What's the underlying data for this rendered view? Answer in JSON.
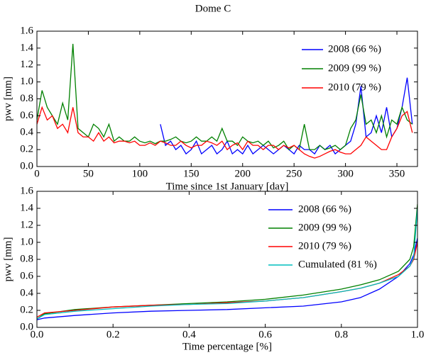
{
  "chart_data": [
    {
      "type": "line",
      "title": "Dome C",
      "xlabel": "Time since 1st January [day]",
      "ylabel": "pwv [mm]",
      "legend": "upper right",
      "x": [
        0,
        5,
        10,
        15,
        20,
        25,
        30,
        35,
        40,
        45,
        50,
        55,
        60,
        65,
        70,
        75,
        80,
        85,
        90,
        95,
        100,
        105,
        110,
        115,
        120,
        125,
        130,
        135,
        140,
        145,
        150,
        155,
        160,
        165,
        170,
        175,
        180,
        185,
        190,
        195,
        200,
        205,
        210,
        215,
        220,
        225,
        230,
        235,
        240,
        245,
        250,
        255,
        260,
        265,
        270,
        275,
        280,
        285,
        290,
        295,
        300,
        305,
        310,
        315,
        320,
        325,
        330,
        335,
        340,
        345,
        350,
        355,
        360,
        365
      ],
      "xlim": [
        0,
        370
      ],
      "xticks": [
        0,
        50,
        100,
        150,
        200,
        250,
        300,
        350
      ],
      "ylim": [
        0,
        1.6
      ],
      "yticks": [
        {
          "value": 0,
          "label": "0.0"
        },
        0.2,
        0.4,
        0.6,
        0.8,
        {
          "value": 1,
          "label": "1.0"
        },
        1.2,
        1.4,
        1.6
      ],
      "series": [
        {
          "name": "2008 (66 %)",
          "color": "#0000ff",
          "values": [
            null,
            null,
            null,
            null,
            null,
            null,
            null,
            null,
            null,
            null,
            null,
            null,
            null,
            null,
            null,
            null,
            null,
            null,
            null,
            null,
            null,
            null,
            null,
            null,
            0.5,
            0.25,
            0.3,
            0.2,
            0.25,
            0.15,
            0.2,
            0.3,
            0.15,
            0.2,
            0.25,
            0.15,
            0.2,
            0.3,
            0.15,
            0.2,
            0.15,
            0.25,
            0.15,
            0.2,
            0.25,
            0.2,
            0.15,
            0.2,
            0.25,
            0.2,
            0.15,
            0.25,
            0.2,
            0.2,
            0.15,
            0.25,
            0.2,
            0.25,
            0.15,
            0.2,
            0.25,
            0.3,
            0.5,
            0.95,
            0.35,
            0.4,
            0.6,
            0.4,
            0.7,
            0.35,
            0.45,
            0.7,
            1.05,
            0.5
          ]
        },
        {
          "name": "2009 (99 %)",
          "color": "#008000",
          "values": [
            0.55,
            0.9,
            0.7,
            0.6,
            0.5,
            0.75,
            0.55,
            1.45,
            0.45,
            0.4,
            0.35,
            0.5,
            0.45,
            0.35,
            0.5,
            0.3,
            0.35,
            0.3,
            0.3,
            0.35,
            0.3,
            0.28,
            0.3,
            0.27,
            0.3,
            0.3,
            0.32,
            0.35,
            0.3,
            0.28,
            0.3,
            0.35,
            0.3,
            0.3,
            0.35,
            0.3,
            0.45,
            0.3,
            0.3,
            0.25,
            0.35,
            0.3,
            0.28,
            0.3,
            0.25,
            0.3,
            0.22,
            0.25,
            0.3,
            0.2,
            0.25,
            0.2,
            0.5,
            0.2,
            0.2,
            0.25,
            0.2,
            0.22,
            0.25,
            0.2,
            0.25,
            0.45,
            0.55,
            0.85,
            0.5,
            0.55,
            0.4,
            0.6,
            0.35,
            0.55,
            0.5,
            0.7,
            0.55,
            0.5
          ]
        },
        {
          "name": "2010 (79 %)",
          "color": "#ff0000",
          "values": [
            0.5,
            0.7,
            0.55,
            0.6,
            0.45,
            0.5,
            0.4,
            0.7,
            0.4,
            0.35,
            0.35,
            0.3,
            0.4,
            0.3,
            0.35,
            0.28,
            0.3,
            0.3,
            0.28,
            0.3,
            0.25,
            0.25,
            0.28,
            0.25,
            0.3,
            0.28,
            0.25,
            0.25,
            0.3,
            0.25,
            0.22,
            0.25,
            0.25,
            0.3,
            0.28,
            0.25,
            0.3,
            0.2,
            0.25,
            0.28,
            0.2,
            0.3,
            0.25,
            0.25,
            0.2,
            0.25,
            0.25,
            0.2,
            0.25,
            0.22,
            0.25,
            0.2,
            0.15,
            0.12,
            0.1,
            0.12,
            0.15,
            0.18,
            0.2,
            0.17,
            0.15,
            0.15,
            0.2,
            0.25,
            0.35,
            0.3,
            0.25,
            0.2,
            0.2,
            0.35,
            0.45,
            0.6,
            0.65,
            0.4
          ]
        }
      ]
    },
    {
      "type": "line",
      "xlabel": "Time percentage [%]",
      "ylabel": "pwv [mm]",
      "legend": "upper right",
      "x": [
        0,
        0.02,
        0.1,
        0.2,
        0.3,
        0.4,
        0.5,
        0.6,
        0.7,
        0.8,
        0.85,
        0.9,
        0.95,
        0.98,
        0.99,
        1
      ],
      "xlim": [
        0,
        1
      ],
      "xticks": [
        {
          "value": 0,
          "label": "0.0"
        },
        0.2,
        0.4,
        0.6,
        0.8,
        {
          "value": 1,
          "label": "1.0"
        }
      ],
      "ylim": [
        0,
        1.6
      ],
      "yticks": [
        {
          "value": 0,
          "label": "0.0"
        },
        0.2,
        0.4,
        0.6,
        0.8,
        {
          "value": 1,
          "label": "1.0"
        },
        1.2,
        1.4,
        1.6
      ],
      "series": [
        {
          "name": "2008 (66 %)",
          "color": "#0000ff",
          "values": [
            0.09,
            0.11,
            0.14,
            0.17,
            0.19,
            0.2,
            0.21,
            0.23,
            0.25,
            0.3,
            0.35,
            0.45,
            0.6,
            0.75,
            0.85,
            1.05
          ]
        },
        {
          "name": "2009 (99 %)",
          "color": "#008000",
          "values": [
            0.1,
            0.16,
            0.21,
            0.24,
            0.26,
            0.28,
            0.3,
            0.33,
            0.38,
            0.45,
            0.5,
            0.56,
            0.66,
            0.8,
            0.95,
            1.45
          ]
        },
        {
          "name": "2010 (79 %)",
          "color": "#ff0000",
          "values": [
            0.12,
            0.17,
            0.2,
            0.24,
            0.26,
            0.27,
            0.29,
            0.31,
            0.35,
            0.42,
            0.46,
            0.52,
            0.62,
            0.72,
            0.8,
            1.0
          ]
        },
        {
          "name": "Cumulated (81 %)",
          "color": "#00bfbf",
          "values": [
            0.1,
            0.15,
            0.19,
            0.22,
            0.25,
            0.27,
            0.28,
            0.31,
            0.35,
            0.42,
            0.46,
            0.52,
            0.6,
            0.72,
            0.82,
            1.4
          ]
        }
      ]
    }
  ]
}
